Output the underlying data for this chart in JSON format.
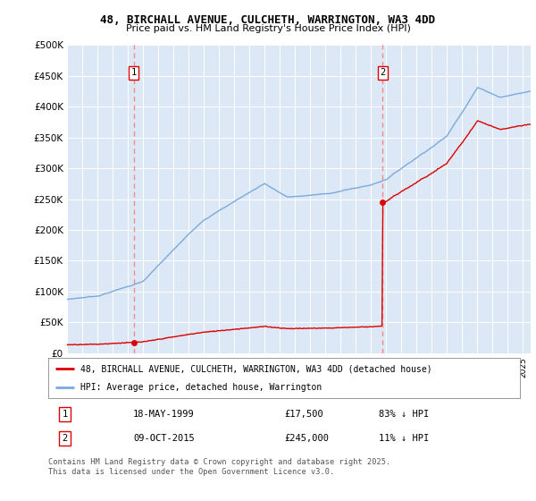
{
  "title1": "48, BIRCHALL AVENUE, CULCHETH, WARRINGTON, WA3 4DD",
  "title2": "Price paid vs. HM Land Registry's House Price Index (HPI)",
  "ylabel_ticks": [
    "£0",
    "£50K",
    "£100K",
    "£150K",
    "£200K",
    "£250K",
    "£300K",
    "£350K",
    "£400K",
    "£450K",
    "£500K"
  ],
  "ylim": [
    0,
    500000
  ],
  "xlim_start": 1995.0,
  "xlim_end": 2025.5,
  "sale1_x": 1999.38,
  "sale1_y": 17500,
  "sale2_x": 2015.77,
  "sale2_y": 245000,
  "sale_color": "#dd0000",
  "hpi_color": "#7aaadd",
  "vline_color": "#ff8888",
  "background_color": "#dce8f5",
  "legend_label1": "48, BIRCHALL AVENUE, CULCHETH, WARRINGTON, WA3 4DD (detached house)",
  "legend_label2": "HPI: Average price, detached house, Warrington",
  "annotation1_num": "1",
  "annotation1_date": "18-MAY-1999",
  "annotation1_price": "£17,500",
  "annotation1_hpi": "83% ↓ HPI",
  "annotation2_num": "2",
  "annotation2_date": "09-OCT-2015",
  "annotation2_price": "£245,000",
  "annotation2_hpi": "11% ↓ HPI",
  "footnote": "Contains HM Land Registry data © Crown copyright and database right 2025.\nThis data is licensed under the Open Government Licence v3.0."
}
